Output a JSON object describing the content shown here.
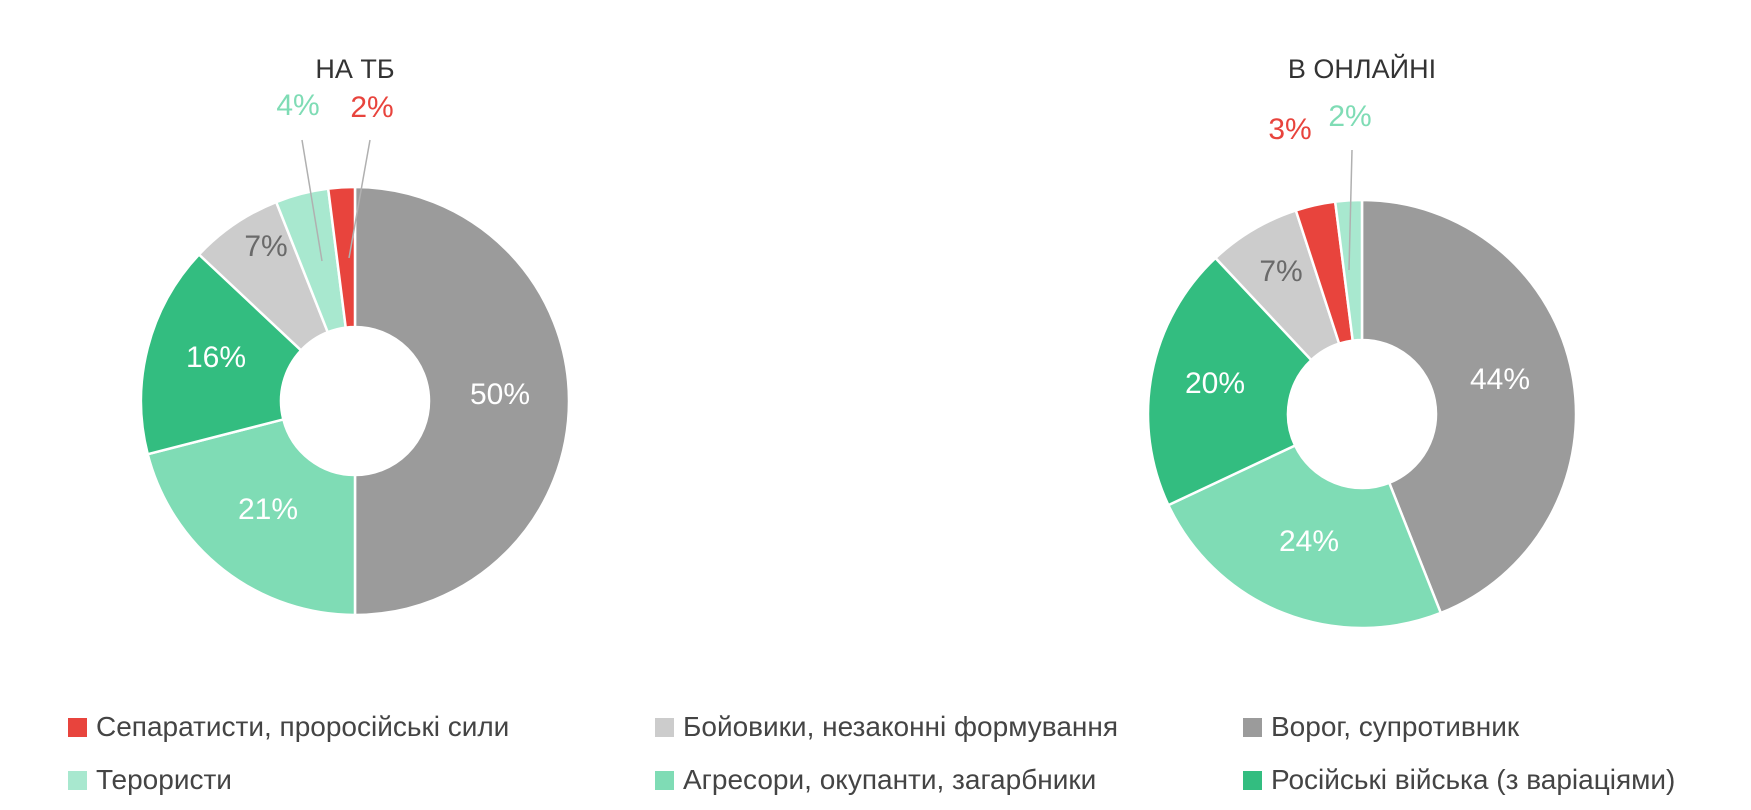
{
  "colors": {
    "Separatists": "#e8443d",
    "Militants": "#cccccc",
    "Enemy": "#9b9b9b",
    "Terrorists": "#a8e8cf",
    "Aggressors": "#7fdcb5",
    "RussianTroops": "#33bd80"
  },
  "legend": [
    {
      "key": "Separatists",
      "label": "Сепаратисти, проросійські сили"
    },
    {
      "key": "Militants",
      "label": "Бойовики, незаконні формування"
    },
    {
      "key": "Enemy",
      "label": "Ворог, супротивник"
    },
    {
      "key": "Terrorists",
      "label": "Терористи"
    },
    {
      "key": "Aggressors",
      "label": "Агресори, окупанти, загарбники"
    },
    {
      "key": "RussianTroops",
      "label": "Російські війська (з варіаціями)"
    }
  ],
  "chart_data": [
    {
      "type": "pie",
      "donut": true,
      "title": "НА ТБ",
      "slices": [
        {
          "key": "Enemy",
          "value": 50,
          "label": "50%"
        },
        {
          "key": "Aggressors",
          "value": 21,
          "label": "21%"
        },
        {
          "key": "RussianTroops",
          "value": 16,
          "label": "16%"
        },
        {
          "key": "Militants",
          "value": 7,
          "label": "7%"
        },
        {
          "key": "Terrorists",
          "value": 4,
          "label": "4%"
        },
        {
          "key": "Separatists",
          "value": 2,
          "label": "2%"
        }
      ]
    },
    {
      "type": "pie",
      "donut": true,
      "title": "В ОНЛАЙНІ",
      "slices": [
        {
          "key": "Enemy",
          "value": 44,
          "label": "44%"
        },
        {
          "key": "Aggressors",
          "value": 24,
          "label": "24%"
        },
        {
          "key": "RussianTroops",
          "value": 20,
          "label": "20%"
        },
        {
          "key": "Militants",
          "value": 7,
          "label": "7%"
        },
        {
          "key": "Separatists",
          "value": 3,
          "label": "3%"
        },
        {
          "key": "Terrorists",
          "value": 2,
          "label": "2%"
        }
      ]
    }
  ]
}
